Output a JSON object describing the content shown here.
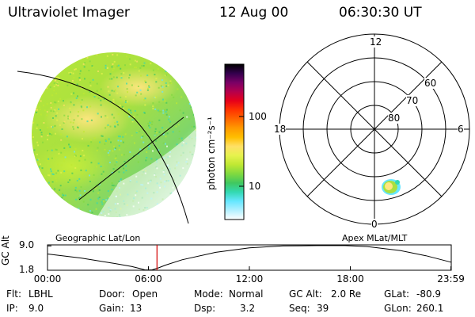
{
  "header": {
    "title": "Ultraviolet Imager",
    "date": "12 Aug 00",
    "time": "06:30:30 UT"
  },
  "colorbar": {
    "label": "photon cm⁻²s⁻¹",
    "ticks": [
      "100",
      "10"
    ],
    "colors": [
      "#000000",
      "#33004d",
      "#7a0066",
      "#b3004d",
      "#e6001a",
      "#ff3300",
      "#ff6600",
      "#ff9900",
      "#ffbf00",
      "#ffe066",
      "#e6f24d",
      "#bfe833",
      "#80d940",
      "#40c860",
      "#33d9b3",
      "#66e6ff",
      "#b3f0ff",
      "#ffffff"
    ]
  },
  "captions": {
    "left": "Geographic Lat/Lon",
    "right": "Apex MLat/MLT"
  },
  "polar": {
    "mlt_labels": {
      "top": "12",
      "left": "18",
      "right": "6",
      "bottom": "0"
    },
    "lat_labels": [
      "60",
      "70",
      "80"
    ]
  },
  "chart_data": {
    "type": "line",
    "title": "",
    "ylabel": "GC Alt",
    "yticks": [
      "9.0",
      "1.8"
    ],
    "xticks": [
      "00:00",
      "06:00",
      "12:00",
      "18:00",
      "23:59"
    ],
    "x_hours": [
      0,
      2,
      4,
      5,
      5.5,
      5.8,
      6.2,
      6.6,
      7,
      8,
      10,
      12,
      14,
      16,
      17.7,
      19,
      21,
      22.5,
      23.98
    ],
    "gc_alt_re": [
      6.6,
      5.4,
      3.8,
      2.9,
      2.3,
      1.9,
      1.9,
      2.5,
      3.3,
      4.9,
      7.1,
      8.4,
      9.0,
      9.1,
      9.1,
      8.8,
      7.6,
      6.1,
      4.2
    ],
    "current_time_hours": 6.508,
    "ylim": [
      1.8,
      9.3
    ],
    "xlim": [
      0,
      24
    ],
    "marker_color": "#d40000"
  },
  "info": {
    "flt_label": "Flt:",
    "flt_value": "LBHL",
    "ip_label": "IP:",
    "ip_value": "9.0",
    "door_label": "Door:",
    "door_value": "Open",
    "gain_label": "Gain:",
    "gain_value": "13",
    "mode_label": "Mode:",
    "mode_value": "Normal",
    "dsp_label": "Dsp:",
    "dsp_value": "3.2",
    "gcalt_label": "GC Alt:",
    "gcalt_value": "2.0 Re",
    "seq_label": "Seq:",
    "seq_value": "39",
    "glat_label": "GLat:",
    "glat_value": "-80.9",
    "glon_label": "GLon:",
    "glon_value": "260.1"
  }
}
